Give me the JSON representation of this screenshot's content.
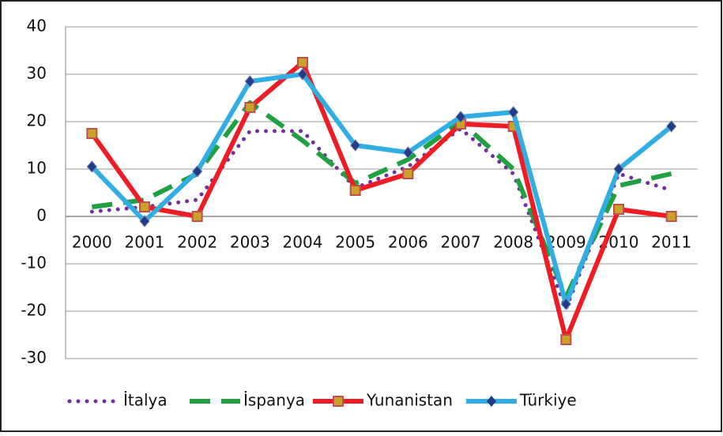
{
  "chart_data": {
    "type": "line",
    "categories": [
      "2000",
      "2001",
      "2002",
      "2003",
      "2004",
      "2005",
      "2006",
      "2007",
      "2008",
      "2009",
      "2010",
      "2011"
    ],
    "series": [
      {
        "name": "İtalya",
        "color": "#7030a0",
        "style": "dotted",
        "values": [
          1,
          2,
          3.5,
          18,
          18,
          6,
          10.5,
          18.5,
          9,
          -19.5,
          9,
          5.5
        ]
      },
      {
        "name": "İspanya",
        "color": "#20a040",
        "style": "dashed",
        "values": [
          2,
          3.5,
          9,
          24,
          16,
          7,
          12,
          20,
          10,
          -17,
          6.5,
          9
        ]
      },
      {
        "name": "Yunanistan",
        "color": "#ee1c24",
        "style": "solid",
        "marker": "square",
        "values": [
          17.5,
          2,
          0,
          23,
          32.5,
          5.5,
          9,
          19.5,
          19,
          -26,
          1.5,
          0
        ]
      },
      {
        "name": "Türkiye",
        "color": "#30aee4",
        "style": "solid",
        "marker": "diamond",
        "values": [
          10.5,
          -1,
          9.5,
          28.5,
          30,
          15,
          13.5,
          21,
          22,
          -18.5,
          10,
          19
        ]
      }
    ],
    "ylim": [
      -30,
      40
    ],
    "yticks": [
      -30,
      -20,
      -10,
      0,
      10,
      20,
      30,
      40
    ],
    "grid": true,
    "legend": "bottom"
  }
}
